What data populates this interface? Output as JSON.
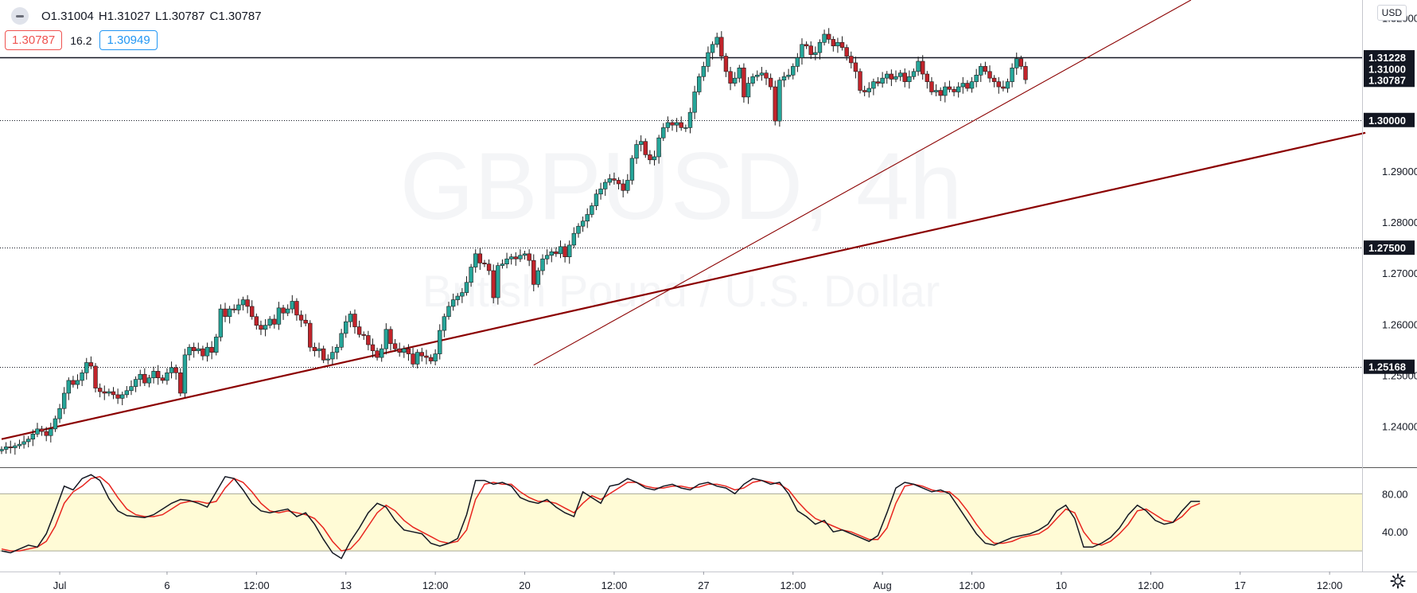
{
  "header": {
    "open": "O1.31004",
    "high": "H1.31027",
    "low": "L1.30787",
    "close": "C1.30787",
    "sell_price": "1.30787",
    "spread": "16.2",
    "buy_price": "1.30949"
  },
  "currency": "USD",
  "watermark": {
    "symbol": "GBPUSD, 4h",
    "description": "British Pound / U.S. Dollar"
  },
  "colors": {
    "up": "#26a69a",
    "down": "#c2242b",
    "trend": "#8b0000",
    "stoch_k": "#131722",
    "stoch_d": "#e8251f",
    "stoch_band": "#fffbd6"
  },
  "chart_data": {
    "type": "candlestick",
    "price_axis": {
      "min": 1.232,
      "max": 1.3235,
      "ticks": [
        "1.24000",
        "1.25000",
        "1.26000",
        "1.27000",
        "1.28000",
        "1.29000",
        "1.32000"
      ],
      "tick_values": [
        1.24,
        1.25,
        1.26,
        1.27,
        1.28,
        1.29,
        1.32
      ]
    },
    "time_axis": {
      "labels": [
        "Jul",
        "6",
        "12:00",
        "13",
        "12:00",
        "20",
        "12:00",
        "27",
        "12:00",
        "Aug",
        "12:00",
        "10",
        "12:00",
        "17",
        "12:00"
      ],
      "bar_index": [
        13,
        37,
        57,
        77,
        97,
        117,
        137,
        157,
        177,
        197,
        217,
        237,
        257,
        277,
        297
      ]
    },
    "horizontal_lines": [
      {
        "price": 1.31228,
        "label": "1.31228",
        "style": "solid"
      },
      {
        "price": 1.3,
        "label": "1.30000",
        "style": "dotted"
      },
      {
        "price": 1.275,
        "label": "1.27500",
        "style": "dotted"
      },
      {
        "price": 1.25168,
        "label": "1.25168",
        "style": "dotted"
      }
    ],
    "price_labels": [
      {
        "price": 1.30787,
        "label": "1.30787"
      },
      {
        "price": 1.31,
        "label": "1.31000"
      }
    ],
    "trendlines": [
      {
        "from": [
          0,
          1.2375
        ],
        "to": [
          305,
          1.2975
        ],
        "width": 2.2
      },
      {
        "from": [
          119,
          1.252
        ],
        "to": [
          266,
          1.3235
        ],
        "width": 1.1
      }
    ],
    "close": [
      1.2355,
      1.236,
      1.2358,
      1.2362,
      1.2365,
      1.237,
      1.2375,
      1.2385,
      1.2395,
      1.239,
      1.2382,
      1.2395,
      1.2415,
      1.2435,
      1.2465,
      1.249,
      1.2482,
      1.249,
      1.2505,
      1.2525,
      1.2518,
      1.2475,
      1.2468,
      1.2465,
      1.2468,
      1.2462,
      1.2455,
      1.2462,
      1.247,
      1.2478,
      1.2492,
      1.2502,
      1.2485,
      1.2495,
      1.2508,
      1.2495,
      1.249,
      1.2505,
      1.2515,
      1.2505,
      1.2465,
      1.254,
      1.2555,
      1.2548,
      1.2552,
      1.2538,
      1.2555,
      1.2545,
      1.2575,
      1.263,
      1.2615,
      1.263,
      1.2628,
      1.2638,
      1.2648,
      1.2635,
      1.2615,
      1.2598,
      1.259,
      1.2598,
      1.261,
      1.26,
      1.2632,
      1.2622,
      1.263,
      1.2645,
      1.2618,
      1.2608,
      1.2602,
      1.2555,
      1.2548,
      1.2552,
      1.253,
      1.2532,
      1.2545,
      1.2555,
      1.2582,
      1.2605,
      1.262,
      1.2595,
      1.258,
      1.2578,
      1.256,
      1.2548,
      1.2535,
      1.2552,
      1.259,
      1.2562,
      1.2552,
      1.2545,
      1.2552,
      1.2542,
      1.2522,
      1.2545,
      1.2538,
      1.2535,
      1.2528,
      1.2542,
      1.2588,
      1.2615,
      1.2635,
      1.2648,
      1.2655,
      1.2662,
      1.2682,
      1.2712,
      1.2738,
      1.272,
      1.2718,
      1.2705,
      1.2652,
      1.2715,
      1.2718,
      1.2728,
      1.2732,
      1.2728,
      1.2735,
      1.2738,
      1.2725,
      1.2678,
      1.2705,
      1.2728,
      1.2735,
      1.2742,
      1.2738,
      1.2752,
      1.2732,
      1.2755,
      1.2778,
      1.2792,
      1.2802,
      1.2815,
      1.2832,
      1.2855,
      1.2865,
      1.2878,
      1.2885,
      1.2882,
      1.2875,
      1.2862,
      1.2882,
      1.2925,
      1.2952,
      1.2958,
      1.2932,
      1.2922,
      1.2928,
      1.2965,
      1.2985,
      1.2995,
      1.299,
      1.2995,
      1.2985,
      1.2985,
      1.3015,
      1.3055,
      1.3085,
      1.3105,
      1.3132,
      1.3148,
      1.3162,
      1.3125,
      1.3095,
      1.3072,
      1.3082,
      1.3102,
      1.3045,
      1.3072,
      1.3085,
      1.3088,
      1.3092,
      1.3082,
      1.3065,
      1.2998,
      1.3078,
      1.3085,
      1.3088,
      1.3105,
      1.3122,
      1.3148,
      1.3145,
      1.3128,
      1.3132,
      1.3152,
      1.3168,
      1.3158,
      1.3145,
      1.3152,
      1.3142,
      1.3125,
      1.3112,
      1.3095,
      1.3058,
      1.3055,
      1.3062,
      1.3075,
      1.3072,
      1.3082,
      1.309,
      1.308,
      1.3085,
      1.3092,
      1.3075,
      1.3085,
      1.3095,
      1.3115,
      1.309,
      1.3075,
      1.3055,
      1.3058,
      1.3048,
      1.3065,
      1.306,
      1.3055,
      1.3065,
      1.3072,
      1.3062,
      1.3075,
      1.3088,
      1.3105,
      1.3095,
      1.3082,
      1.3075,
      1.3065,
      1.3062,
      1.3075,
      1.3102,
      1.312,
      1.3105,
      1.3079
    ],
    "stochastic": {
      "range": [
        0,
        100
      ],
      "band": [
        20,
        80
      ],
      "ticks": [
        "80.00",
        "40.00"
      ],
      "tick_values": [
        80,
        40
      ],
      "k": [
        20,
        18,
        22,
        26,
        24,
        38,
        62,
        88,
        84,
        96,
        100,
        94,
        75,
        62,
        57,
        56,
        55,
        58,
        64,
        70,
        74,
        73,
        70,
        66,
        82,
        98,
        96,
        84,
        70,
        62,
        60,
        62,
        64,
        56,
        60,
        48,
        32,
        18,
        12,
        30,
        44,
        60,
        70,
        66,
        52,
        42,
        40,
        38,
        28,
        25,
        28,
        33,
        58,
        94,
        94,
        90,
        92,
        88,
        76,
        72,
        70,
        74,
        66,
        60,
        56,
        82,
        76,
        70,
        88,
        90,
        96,
        92,
        86,
        84,
        88,
        90,
        86,
        84,
        90,
        92,
        88,
        86,
        80,
        90,
        96,
        94,
        90,
        92,
        80,
        62,
        56,
        48,
        52,
        40,
        42,
        38,
        34,
        30,
        36,
        60,
        86,
        92,
        90,
        86,
        82,
        84,
        80,
        66,
        52,
        38,
        28,
        26,
        30,
        34,
        36,
        38,
        42,
        48,
        62,
        68,
        54,
        24,
        24,
        28,
        34,
        44,
        58,
        68,
        62,
        52,
        48,
        50,
        62,
        72,
        72
      ],
      "d": [
        22,
        20,
        20,
        22,
        24,
        30,
        46,
        70,
        82,
        88,
        96,
        98,
        90,
        76,
        64,
        58,
        56,
        56,
        58,
        64,
        70,
        72,
        72,
        70,
        72,
        86,
        96,
        92,
        82,
        70,
        62,
        60,
        62,
        60,
        58,
        54,
        44,
        30,
        20,
        22,
        32,
        46,
        60,
        68,
        62,
        52,
        45,
        40,
        35,
        30,
        28,
        30,
        42,
        74,
        90,
        92,
        90,
        90,
        82,
        76,
        72,
        72,
        70,
        65,
        60,
        70,
        78,
        74,
        80,
        86,
        92,
        92,
        88,
        86,
        86,
        88,
        88,
        86,
        87,
        90,
        90,
        88,
        84,
        86,
        92,
        94,
        92,
        90,
        84,
        72,
        62,
        54,
        50,
        46,
        42,
        40,
        36,
        32,
        32,
        44,
        70,
        88,
        90,
        88,
        84,
        82,
        82,
        74,
        62,
        48,
        36,
        28,
        28,
        30,
        34,
        36,
        38,
        44,
        54,
        64,
        60,
        40,
        28,
        26,
        30,
        38,
        48,
        62,
        64,
        58,
        52,
        50,
        56,
        66,
        70
      ]
    }
  }
}
